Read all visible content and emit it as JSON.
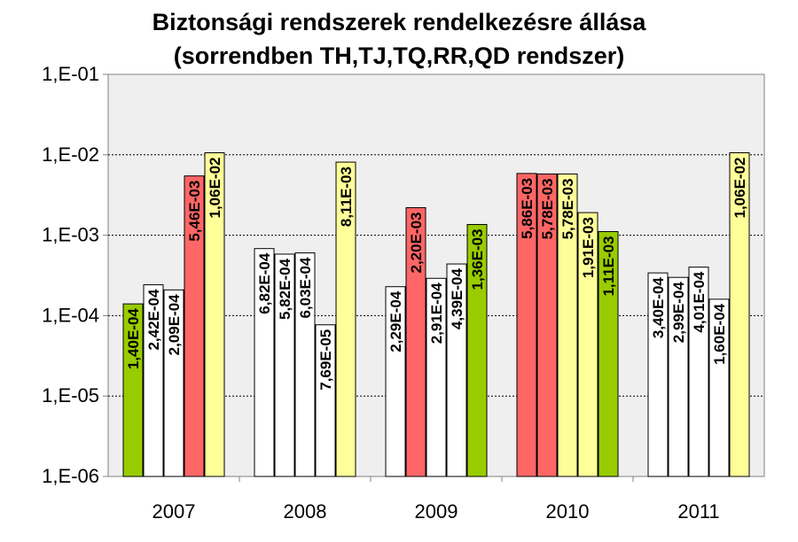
{
  "chart_data": {
    "type": "bar",
    "title_line1": "Biztonsági rendszerek rendelkezésre állása",
    "title_line2": "(sorrendben TH,TJ,TQ,RR,QD rendszer)",
    "xlabel": "",
    "ylabel": "",
    "y_scale": "log",
    "ylim": [
      1e-06,
      0.1
    ],
    "y_ticks": [
      {
        "value": 0.1,
        "label": "1,E-01"
      },
      {
        "value": 0.01,
        "label": "1,E-02"
      },
      {
        "value": 0.001,
        "label": "1,E-03"
      },
      {
        "value": 0.0001,
        "label": "1,E-04"
      },
      {
        "value": 1e-05,
        "label": "1,E-05"
      },
      {
        "value": 1e-06,
        "label": "1,E-06"
      }
    ],
    "grid": true,
    "legend": "none",
    "plot_background": "#efefef",
    "colors": {
      "green": "#99cc00",
      "red": "#ff6666",
      "yellow": "#ffff99",
      "white": "#ffffff"
    },
    "groups": [
      {
        "category": "2007",
        "bars": [
          {
            "value": 0.00014,
            "label": "1,40E-04",
            "color": "green"
          },
          {
            "value": 0.000242,
            "label": "2,42E-04",
            "color": "white"
          },
          {
            "value": 0.000209,
            "label": "2,09E-04",
            "color": "white"
          },
          {
            "value": 0.00546,
            "label": "5,46E-03",
            "color": "red"
          },
          {
            "value": 0.0106,
            "label": "1,06E-02",
            "color": "yellow"
          }
        ]
      },
      {
        "category": "2008",
        "bars": [
          {
            "value": 0.000682,
            "label": "6,82E-04",
            "color": "white"
          },
          {
            "value": 0.000582,
            "label": "5,82E-04",
            "color": "white"
          },
          {
            "value": 0.000603,
            "label": "6,03E-04",
            "color": "white"
          },
          {
            "value": 7.69e-05,
            "label": "7,69E-05",
            "color": "white"
          },
          {
            "value": 0.00811,
            "label": "8,11E-03",
            "color": "yellow"
          }
        ]
      },
      {
        "category": "2009",
        "bars": [
          {
            "value": 0.000229,
            "label": "2,29E-04",
            "color": "white"
          },
          {
            "value": 0.0022,
            "label": "2,20E-03",
            "color": "red"
          },
          {
            "value": 0.000291,
            "label": "2,91E-04",
            "color": "white"
          },
          {
            "value": 0.000439,
            "label": "4,39E-04",
            "color": "white"
          },
          {
            "value": 0.00136,
            "label": "1,36E-03",
            "color": "green"
          }
        ]
      },
      {
        "category": "2010",
        "bars": [
          {
            "value": 0.00586,
            "label": "5,86E-03",
            "color": "red"
          },
          {
            "value": 0.00578,
            "label": "5,78E-03",
            "color": "red"
          },
          {
            "value": 0.00578,
            "label": "5,78E-03",
            "color": "yellow"
          },
          {
            "value": 0.00191,
            "label": "1,91E-03",
            "color": "yellow"
          },
          {
            "value": 0.00111,
            "label": "1,11E-03",
            "color": "green"
          }
        ]
      },
      {
        "category": "2011",
        "bars": [
          {
            "value": 0.00034,
            "label": "3,40E-04",
            "color": "white"
          },
          {
            "value": 0.000299,
            "label": "2,99E-04",
            "color": "white"
          },
          {
            "value": 0.000401,
            "label": "4,01E-04",
            "color": "white"
          },
          {
            "value": 0.00016,
            "label": "1,60E-04",
            "color": "white"
          },
          {
            "value": 0.0106,
            "label": "1,06E-02",
            "color": "yellow"
          }
        ]
      }
    ]
  }
}
